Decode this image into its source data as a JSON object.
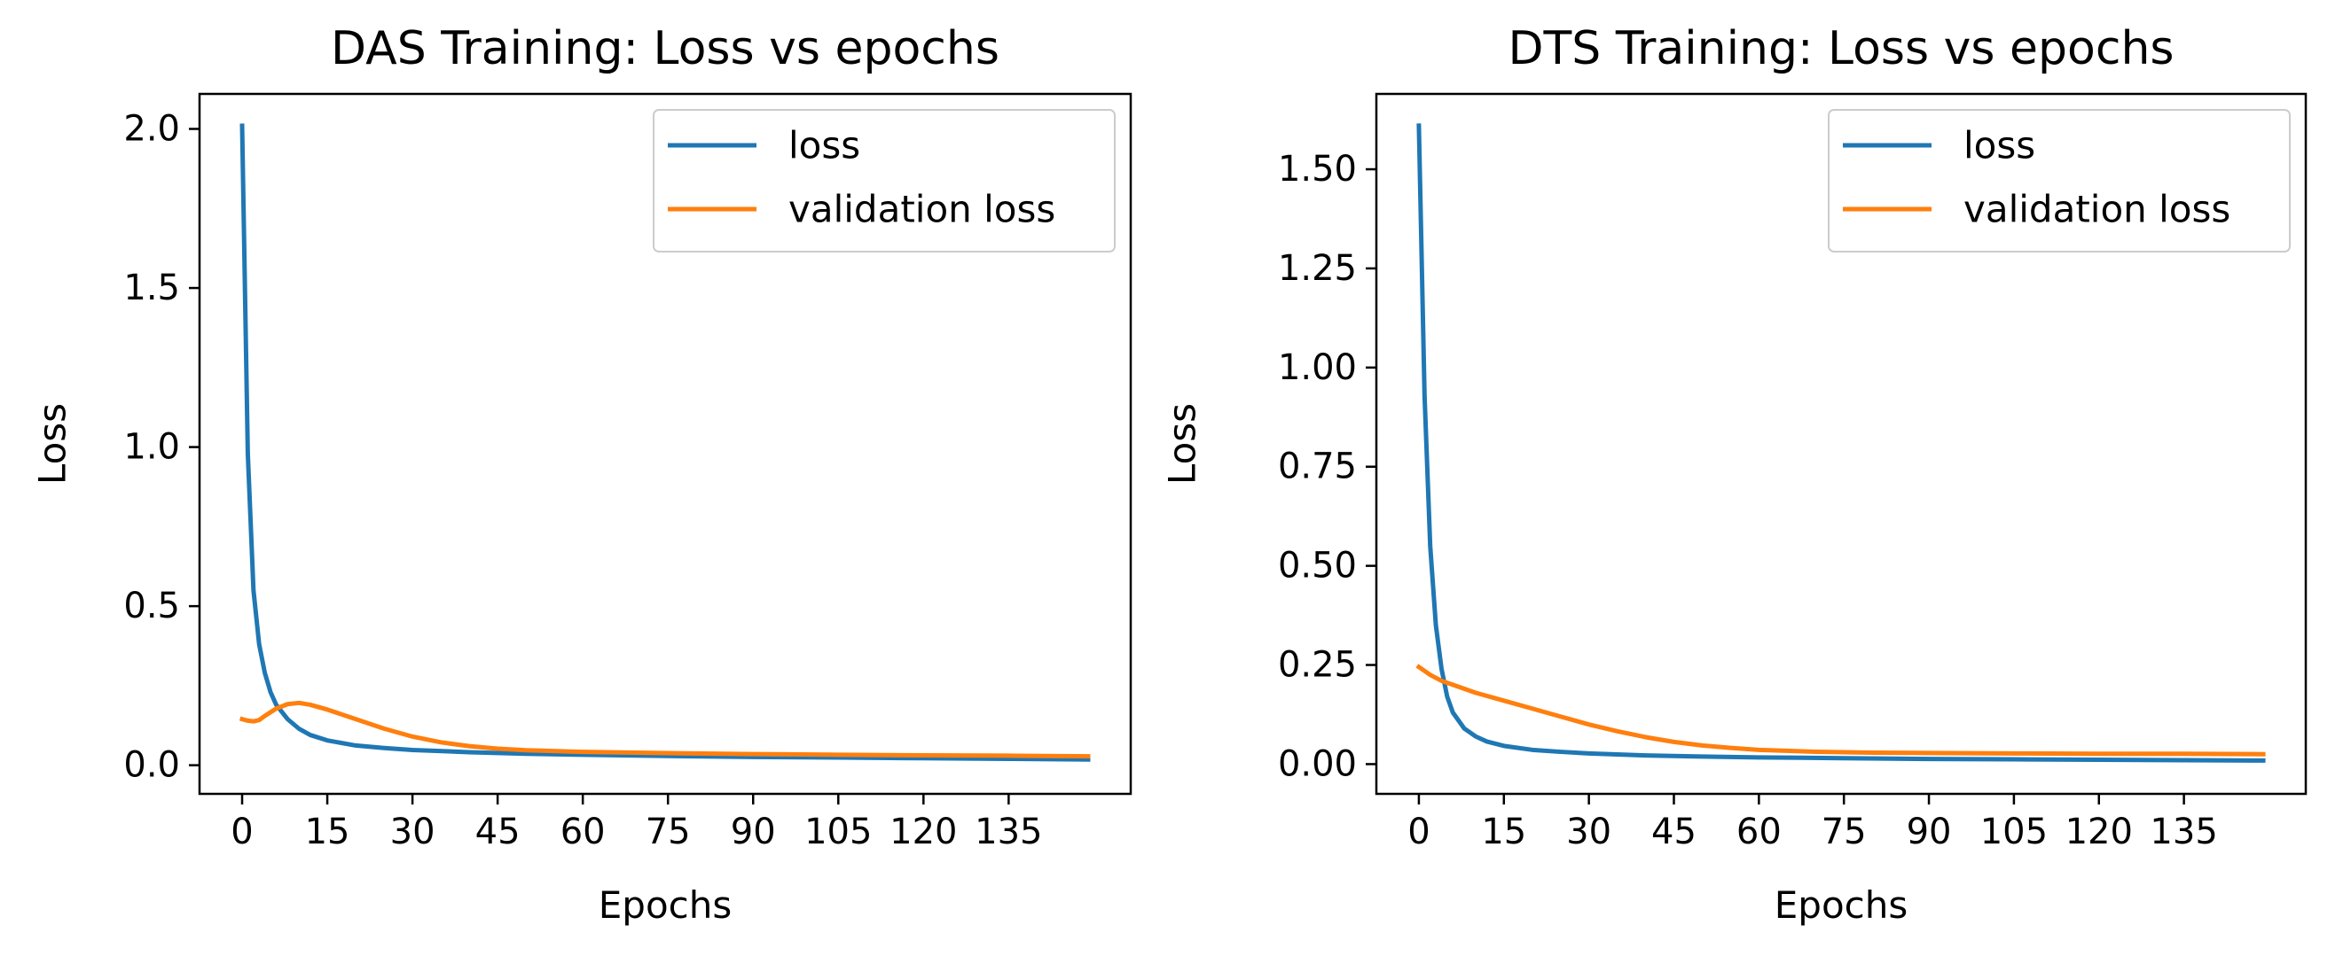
{
  "colors": {
    "loss": "#1f77b4",
    "validation_loss": "#ff7f0e"
  },
  "chart_data": [
    {
      "type": "line",
      "title": "DAS Training: Loss vs epochs",
      "xlabel": "Epochs",
      "ylabel": "Loss",
      "xlim": [
        -7.5,
        156.5
      ],
      "ylim": [
        -0.09,
        2.11
      ],
      "xticks": [
        0,
        15,
        30,
        45,
        60,
        75,
        90,
        105,
        120,
        135
      ],
      "yticks": [
        0.0,
        0.5,
        1.0,
        1.5,
        2.0
      ],
      "ytick_labels": [
        "0.0",
        "0.5",
        "1.0",
        "1.5",
        "2.0"
      ],
      "grid": false,
      "legend_position": "top-right",
      "series": [
        {
          "name": "loss",
          "x": [
            0,
            1,
            2,
            3,
            4,
            5,
            6,
            8,
            10,
            12,
            15,
            20,
            25,
            30,
            40,
            50,
            60,
            75,
            90,
            105,
            120,
            135,
            149
          ],
          "y": [
            2.01,
            0.98,
            0.55,
            0.38,
            0.29,
            0.23,
            0.19,
            0.145,
            0.115,
            0.095,
            0.078,
            0.062,
            0.054,
            0.048,
            0.041,
            0.036,
            0.033,
            0.029,
            0.026,
            0.024,
            0.022,
            0.02,
            0.018
          ]
        },
        {
          "name": "validation loss",
          "x": [
            0,
            1,
            2,
            3,
            4,
            6,
            8,
            10,
            12,
            15,
            20,
            25,
            30,
            35,
            40,
            45,
            50,
            60,
            75,
            90,
            105,
            120,
            135,
            149
          ],
          "y": [
            0.145,
            0.14,
            0.138,
            0.142,
            0.155,
            0.178,
            0.192,
            0.196,
            0.19,
            0.175,
            0.145,
            0.115,
            0.09,
            0.072,
            0.06,
            0.052,
            0.047,
            0.042,
            0.038,
            0.035,
            0.033,
            0.031,
            0.03,
            0.028
          ]
        }
      ]
    },
    {
      "type": "line",
      "title": "DTS Training: Loss vs epochs",
      "xlabel": "Epochs",
      "ylabel": "Loss",
      "xlim": [
        -7.5,
        156.5
      ],
      "ylim": [
        -0.075,
        1.69
      ],
      "xticks": [
        0,
        15,
        30,
        45,
        60,
        75,
        90,
        105,
        120,
        135
      ],
      "yticks": [
        0.0,
        0.25,
        0.5,
        0.75,
        1.0,
        1.25,
        1.5
      ],
      "ytick_labels": [
        "0.00",
        "0.25",
        "0.50",
        "0.75",
        "1.00",
        "1.25",
        "1.50"
      ],
      "grid": false,
      "legend_position": "top-right",
      "series": [
        {
          "name": "loss",
          "x": [
            0,
            1,
            2,
            3,
            4,
            5,
            6,
            8,
            10,
            12,
            15,
            20,
            25,
            30,
            40,
            50,
            60,
            75,
            90,
            105,
            120,
            135,
            149
          ],
          "y": [
            1.61,
            0.93,
            0.55,
            0.35,
            0.24,
            0.17,
            0.13,
            0.09,
            0.07,
            0.057,
            0.046,
            0.036,
            0.031,
            0.027,
            0.022,
            0.019,
            0.017,
            0.015,
            0.013,
            0.012,
            0.011,
            0.01,
            0.009
          ]
        },
        {
          "name": "validation loss",
          "x": [
            0,
            2,
            4,
            6,
            8,
            10,
            15,
            20,
            25,
            30,
            35,
            40,
            45,
            50,
            55,
            60,
            70,
            80,
            90,
            105,
            120,
            135,
            149
          ],
          "y": [
            0.245,
            0.225,
            0.21,
            0.2,
            0.19,
            0.18,
            0.16,
            0.14,
            0.12,
            0.1,
            0.083,
            0.068,
            0.056,
            0.047,
            0.041,
            0.036,
            0.031,
            0.029,
            0.028,
            0.027,
            0.026,
            0.026,
            0.025
          ]
        }
      ]
    }
  ]
}
